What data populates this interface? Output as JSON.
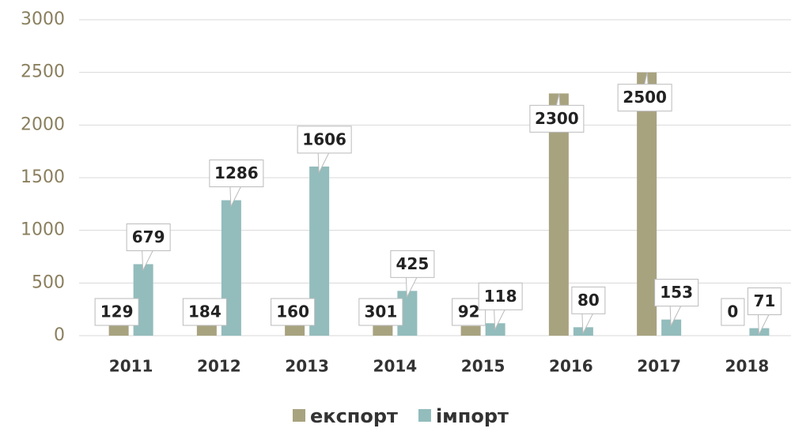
{
  "chart_data": {
    "type": "bar",
    "categories": [
      "2011",
      "2012",
      "2013",
      "2014",
      "2015",
      "2016",
      "2017",
      "2018"
    ],
    "series": [
      {
        "name": "експорт",
        "color": "#a8a37f",
        "values": [
          129,
          184,
          160,
          301,
          92,
          2300,
          2500,
          0
        ]
      },
      {
        "name": "імпорт",
        "color": "#93bcbc",
        "values": [
          679,
          1286,
          1606,
          425,
          118,
          80,
          153,
          71
        ]
      }
    ],
    "ylim": [
      0,
      3000
    ],
    "yticks": [
      0,
      500,
      1000,
      1500,
      2000,
      2500,
      3000
    ],
    "grid": true,
    "legend": "bottom"
  }
}
